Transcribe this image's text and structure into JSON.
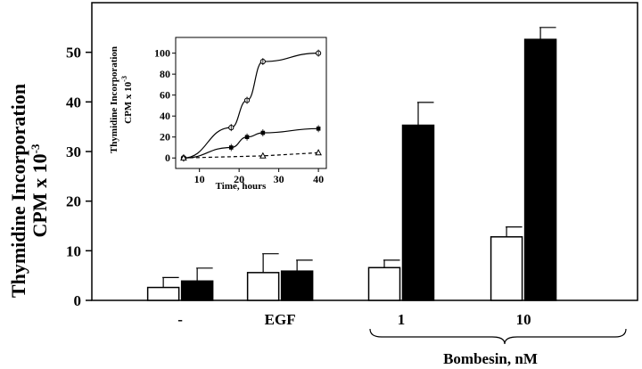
{
  "chart_data": [
    {
      "type": "bar",
      "ylabel_line1": "Thymidine Incorporation",
      "ylabel_line2": "CPM x 10",
      "ylabel_exp": "-3",
      "ylim": [
        0,
        60
      ],
      "yticks": [
        "0",
        "10",
        "20",
        "30",
        "40",
        "50"
      ],
      "ytick_values": [
        0,
        10,
        20,
        30,
        40,
        50
      ],
      "group_labels": [
        "-",
        "EGF",
        "1",
        "10"
      ],
      "group_caption": "Bombesin, nM",
      "series": [
        {
          "fill": "#ffffff",
          "values": [
            2.6,
            5.6,
            6.6,
            12.8
          ],
          "errors": [
            2.0,
            3.8,
            1.5,
            2.0
          ]
        },
        {
          "fill": "#000000",
          "values": [
            3.9,
            5.9,
            35.3,
            52.6
          ],
          "errors": [
            2.6,
            2.2,
            4.6,
            2.4
          ]
        }
      ]
    },
    {
      "type": "line",
      "ylabel_line1": "Thymidine Incorporation",
      "ylabel_line2": "CPM x 10",
      "ylabel_exp": "-3",
      "xlabel": "Time, hours",
      "xlim": [
        4,
        42
      ],
      "ylim": [
        -10,
        115
      ],
      "xticks": [
        "10",
        "20",
        "30",
        "40"
      ],
      "xtick_values": [
        10,
        20,
        30,
        40
      ],
      "yticks": [
        "0",
        "20",
        "40",
        "60",
        "80",
        "100"
      ],
      "ytick_values": [
        0,
        20,
        40,
        60,
        80,
        100
      ],
      "series": [
        {
          "marker": "open-circle",
          "line": "solid",
          "x": [
            6,
            18,
            22,
            26,
            40
          ],
          "y": [
            0,
            29,
            55,
            92,
            100
          ]
        },
        {
          "marker": "filled-square",
          "line": "solid",
          "x": [
            6,
            18,
            22,
            26,
            40
          ],
          "y": [
            0,
            10,
            20,
            24,
            28
          ]
        },
        {
          "marker": "open-triangle",
          "line": "dashed",
          "x": [
            6,
            26,
            40
          ],
          "y": [
            0,
            2,
            5
          ]
        }
      ]
    }
  ]
}
